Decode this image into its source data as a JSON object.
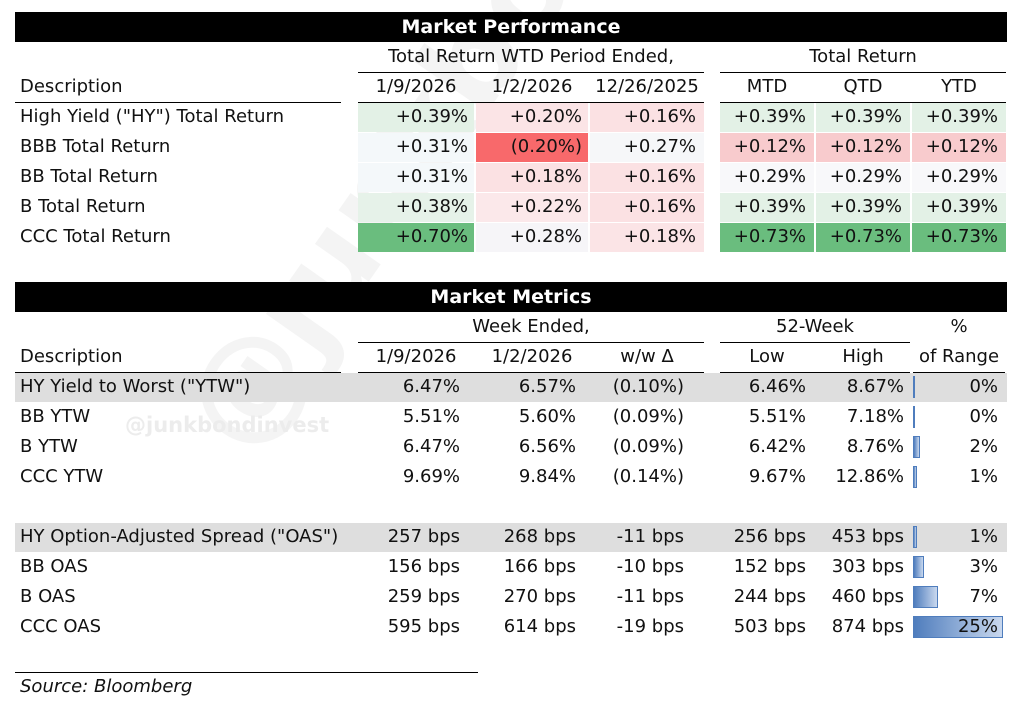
{
  "watermark_text": "@junkbondinvest",
  "performance": {
    "title": "Market Performance",
    "group1_label": "Total Return WTD Period Ended,",
    "group2_label": "Total Return",
    "desc_header": "Description",
    "col_headers": [
      "1/9/2026",
      "1/2/2026",
      "12/26/2025",
      "MTD",
      "QTD",
      "YTD"
    ],
    "rows": [
      {
        "label": "High Yield (\"HY\") Total Return",
        "values": [
          "+0.39%",
          "+0.20%",
          "+0.16%",
          "+0.39%",
          "+0.39%",
          "+0.39%"
        ]
      },
      {
        "label": "BBB Total Return",
        "values": [
          "+0.31%",
          "(0.20%)",
          "+0.27%",
          "+0.12%",
          "+0.12%",
          "+0.12%"
        ]
      },
      {
        "label": "BB Total Return",
        "values": [
          "+0.31%",
          "+0.18%",
          "+0.16%",
          "+0.29%",
          "+0.29%",
          "+0.29%"
        ]
      },
      {
        "label": "B Total Return",
        "values": [
          "+0.38%",
          "+0.22%",
          "+0.16%",
          "+0.39%",
          "+0.39%",
          "+0.39%"
        ]
      },
      {
        "label": "CCC Total Return",
        "values": [
          "+0.70%",
          "+0.28%",
          "+0.18%",
          "+0.73%",
          "+0.73%",
          "+0.73%"
        ]
      }
    ],
    "cell_colors": [
      [
        "#e3f1e6",
        "#fbe4e6",
        "#fbe1e3",
        "#e3f1e6",
        "#e3f1e6",
        "#e3f1e6"
      ],
      [
        "#f4f8fa",
        "#f8696b",
        "#f6f7f9",
        "#f8cbcd",
        "#f8cbcd",
        "#f8cbcd"
      ],
      [
        "#f4f8fa",
        "#fbe1e3",
        "#fbe1e3",
        "#f8f8fa",
        "#f8f8fa",
        "#f8f8fa"
      ],
      [
        "#e6f2e9",
        "#fbe8ea",
        "#fbe1e3",
        "#e3f1e6",
        "#e3f1e6",
        "#e3f1e6"
      ],
      [
        "#6abd7e",
        "#f6f5f8",
        "#fbe4e6",
        "#6abd7e",
        "#6abd7e",
        "#6abd7e"
      ]
    ]
  },
  "metrics": {
    "title": "Market Metrics",
    "group1_label": "Week Ended,",
    "group2_label": "52-Week",
    "group3_label": "%",
    "desc_header": "Description",
    "col_headers": [
      "1/9/2026",
      "1/2/2026",
      "w/w Δ",
      "Low",
      "High",
      "of Range"
    ],
    "ytw_rows": [
      {
        "label": "HY Yield to Worst (\"YTW\")",
        "values": [
          "6.47%",
          "6.57%",
          "(0.10%)",
          "6.46%",
          "8.67%",
          "0%"
        ],
        "range_pct": 0,
        "shaded": true
      },
      {
        "label": "BB YTW",
        "values": [
          "5.51%",
          "5.60%",
          "(0.09%)",
          "5.51%",
          "7.18%",
          "0%"
        ],
        "range_pct": 0,
        "shaded": false
      },
      {
        "label": "B YTW",
        "values": [
          "6.47%",
          "6.56%",
          "(0.09%)",
          "6.42%",
          "8.76%",
          "2%"
        ],
        "range_pct": 2,
        "shaded": false
      },
      {
        "label": "CCC YTW",
        "values": [
          "9.69%",
          "9.84%",
          "(0.14%)",
          "9.67%",
          "12.86%",
          "1%"
        ],
        "range_pct": 1,
        "shaded": false
      }
    ],
    "oas_rows": [
      {
        "label": "HY Option-Adjusted Spread (\"OAS\")",
        "values": [
          "257 bps",
          "268 bps",
          "-11 bps",
          "256 bps",
          "453 bps",
          "1%"
        ],
        "range_pct": 1,
        "shaded": true
      },
      {
        "label": "BB OAS",
        "values": [
          "156 bps",
          "166 bps",
          "-10 bps",
          "152 bps",
          "303 bps",
          "3%"
        ],
        "range_pct": 3,
        "shaded": false
      },
      {
        "label": "B OAS",
        "values": [
          "259 bps",
          "270 bps",
          "-11 bps",
          "244 bps",
          "460 bps",
          "7%"
        ],
        "range_pct": 7,
        "shaded": false
      },
      {
        "label": "CCC OAS",
        "values": [
          "595 bps",
          "614 bps",
          "-19 bps",
          "503 bps",
          "874 bps",
          "25%"
        ],
        "range_pct": 25,
        "shaded": false
      }
    ]
  },
  "source": "Source: Bloomberg"
}
